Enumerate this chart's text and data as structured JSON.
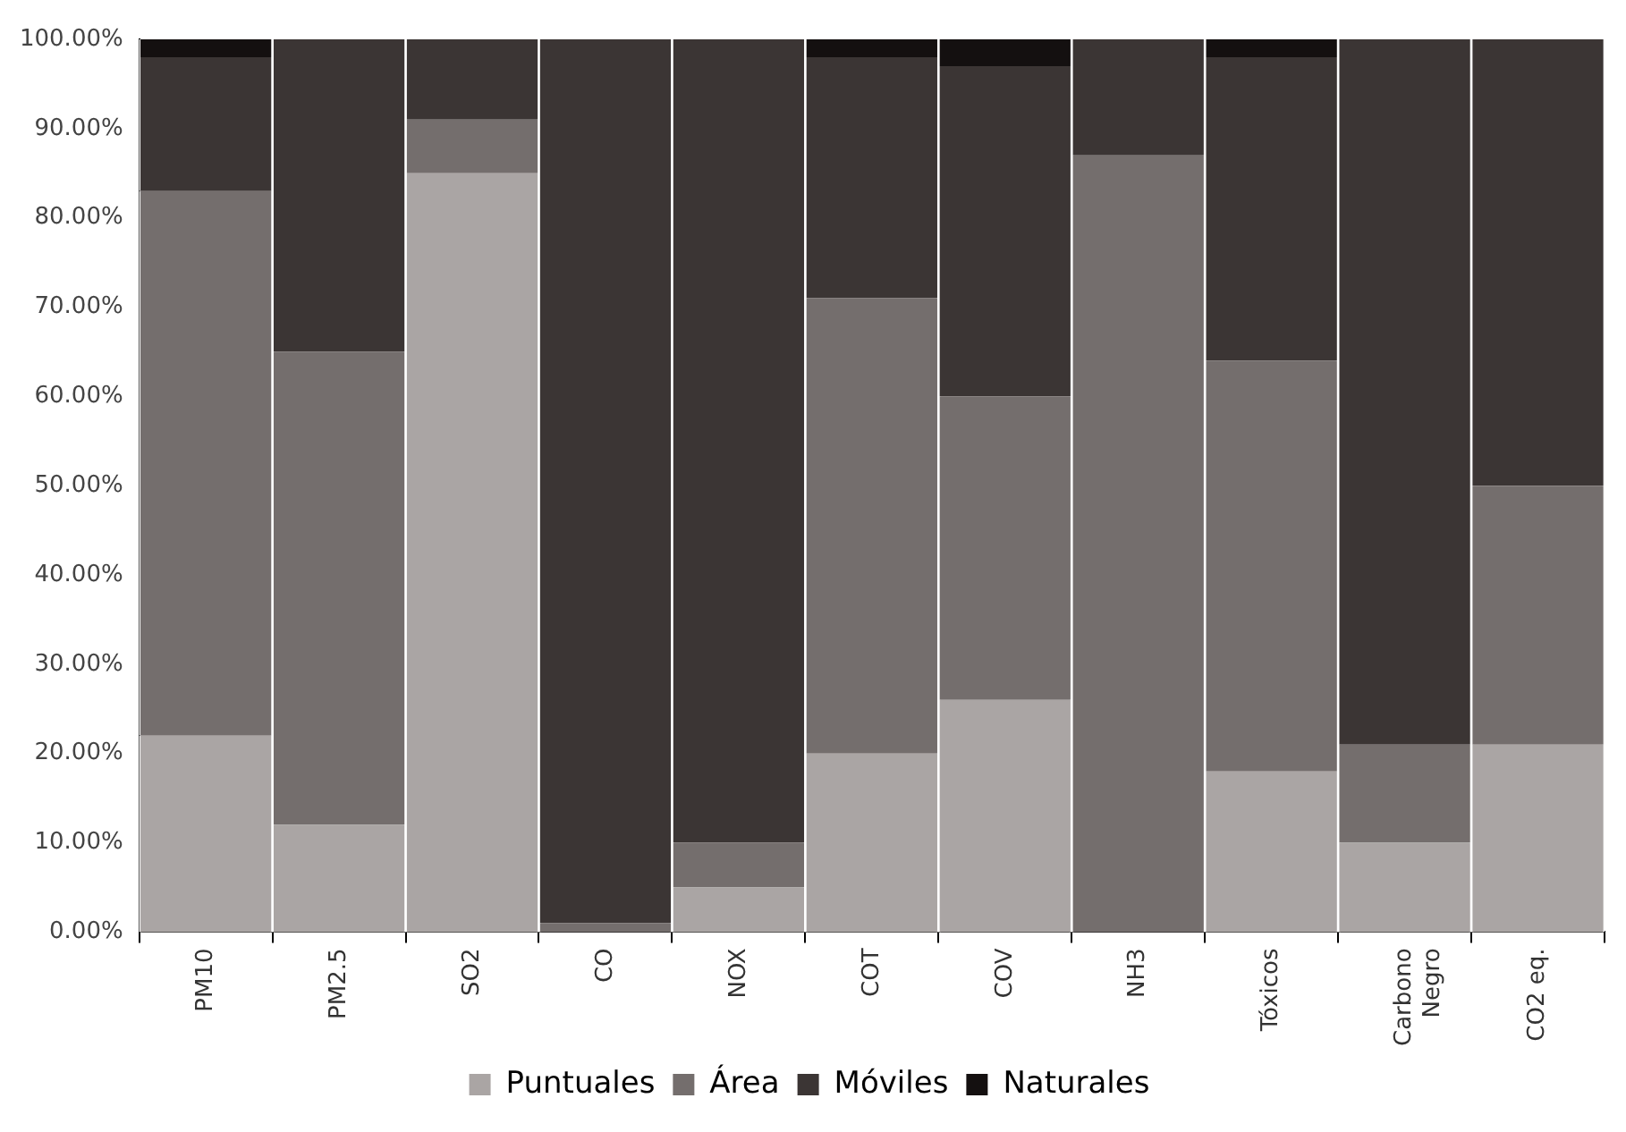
{
  "chart_data": {
    "type": "bar",
    "stacked": true,
    "categories": [
      "PM10",
      "PM2.5",
      "SO2",
      "CO",
      "NOX",
      "COT",
      "COV",
      "NH3",
      "Tóxicos",
      "Carbono Negro",
      "CO2 eq."
    ],
    "series": [
      {
        "name": "Puntuales",
        "color": "#aaa5a4",
        "values": [
          22,
          12,
          85,
          0,
          5,
          20,
          26,
          0,
          18,
          10,
          21
        ]
      },
      {
        "name": "Área",
        "color": "#746e6d",
        "values": [
          61,
          53,
          6,
          1,
          5,
          51,
          34,
          87,
          46,
          11,
          29
        ]
      },
      {
        "name": "Móviles",
        "color": "#3b3534",
        "values": [
          15,
          35,
          9,
          99,
          90,
          27,
          37,
          13,
          34,
          79,
          50
        ]
      },
      {
        "name": "Naturales",
        "color": "#141010",
        "values": [
          2,
          0,
          0,
          0,
          0,
          2,
          3,
          0,
          2,
          0,
          0
        ]
      }
    ],
    "ylim": [
      0,
      100
    ],
    "yticks": [
      {
        "value": 0,
        "label": "0.00%"
      },
      {
        "value": 10,
        "label": "10.00%"
      },
      {
        "value": 20,
        "label": "20.00%"
      },
      {
        "value": 30,
        "label": "30.00%"
      },
      {
        "value": 40,
        "label": "40.00%"
      },
      {
        "value": 50,
        "label": "50.00%"
      },
      {
        "value": 60,
        "label": "60.00%"
      },
      {
        "value": 70,
        "label": "70.00%"
      },
      {
        "value": 80,
        "label": "80.00%"
      },
      {
        "value": 90,
        "label": "90.00%"
      },
      {
        "value": 100,
        "label": "100.00%"
      }
    ],
    "grid": false,
    "legend": "bottom"
  }
}
